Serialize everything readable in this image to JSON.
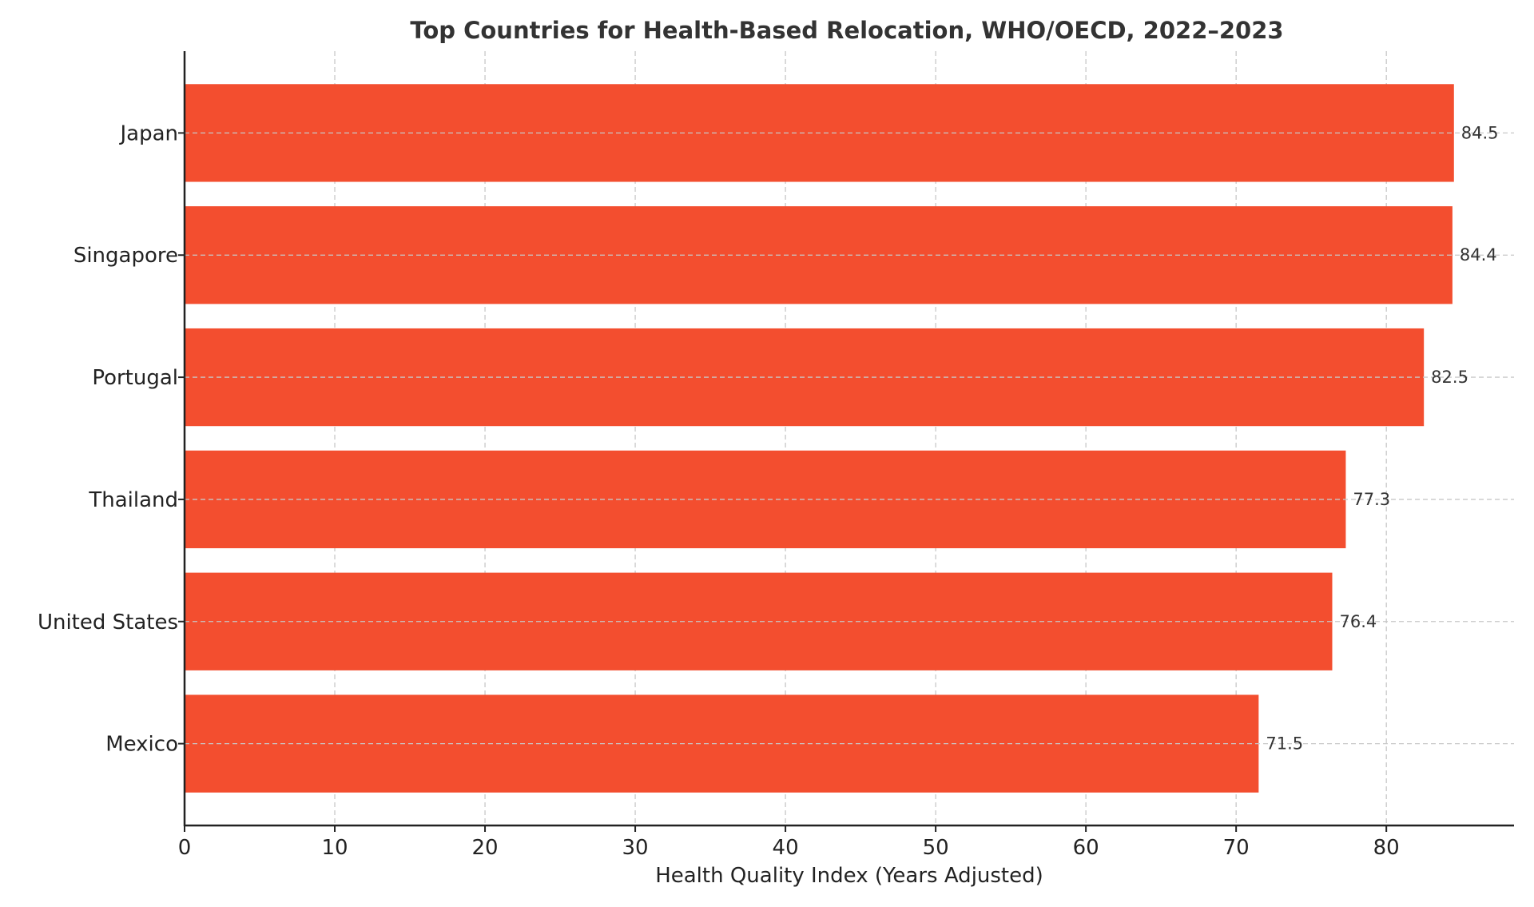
{
  "chart_data": {
    "type": "bar",
    "orientation": "horizontal",
    "title": "Top Countries for Health-Based Relocation, WHO/OECD, 2022–2023",
    "xlabel": "Health Quality Index (Years Adjusted)",
    "ylabel": "",
    "categories": [
      "Japan",
      "Singapore",
      "Portugal",
      "Thailand",
      "United States",
      "Mexico"
    ],
    "values": [
      84.5,
      84.4,
      82.5,
      77.3,
      76.4,
      71.5
    ],
    "value_labels": [
      "84.5",
      "84.4",
      "82.5",
      "77.3",
      "76.4",
      "71.5"
    ],
    "xlim": [
      0,
      88.5
    ],
    "xticks": [
      0,
      10,
      20,
      30,
      40,
      50,
      60,
      70,
      80
    ],
    "xtick_labels": [
      "0",
      "10",
      "20",
      "30",
      "40",
      "50",
      "60",
      "70",
      "80"
    ],
    "grid": true,
    "bar_color": "#f34e2f"
  }
}
